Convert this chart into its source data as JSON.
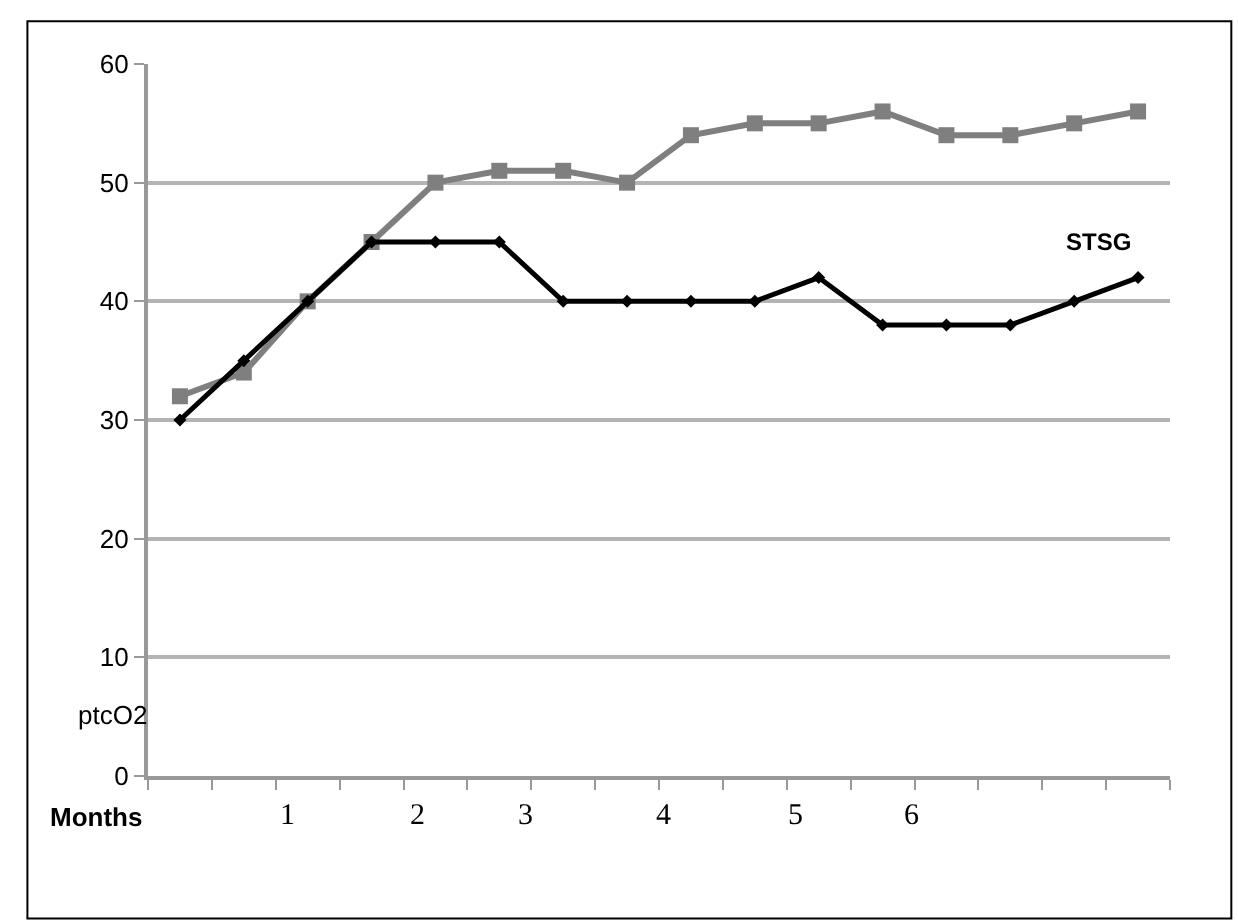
{
  "chart_data": {
    "type": "line",
    "xlabel": "Months",
    "ylabel": "ptcO2",
    "categories": [
      null,
      null,
      null,
      null,
      null,
      null,
      null,
      null,
      null,
      null,
      null,
      null,
      null,
      null,
      null,
      null
    ],
    "series": [
      {
        "color": "#7f7f7f",
        "marker": "square",
        "values": [
          32,
          34,
          40,
          45,
          50,
          51,
          51,
          50,
          54,
          55,
          55,
          56,
          54,
          54,
          55,
          56
        ]
      },
      {
        "name": "STSG",
        "color": "#000000",
        "marker": "diamond",
        "values": [
          30,
          35,
          40,
          45,
          45,
          45,
          40,
          40,
          40,
          40,
          42,
          38,
          38,
          38,
          40,
          42
        ]
      }
    ],
    "annotations": [
      "1",
      "2",
      "3",
      "4",
      "5",
      "6"
    ],
    "ylim": [
      0,
      60
    ],
    "yticks": [
      0,
      10,
      20,
      30,
      40,
      50,
      60
    ],
    "grid": "y",
    "line_style": "solid"
  }
}
